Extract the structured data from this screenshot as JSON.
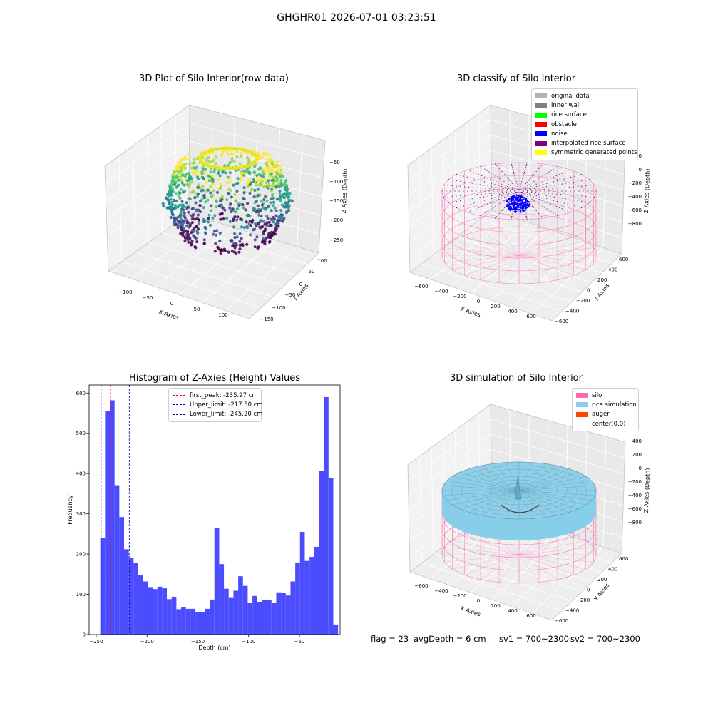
{
  "suptitle": "GHGHR01 2026-07-01 03:23:51",
  "chart_data": [
    {
      "type": "scatter",
      "title": "3D Plot of Silo Interior(row data)",
      "xlabel": "X Axies",
      "ylabel": "Y Axies",
      "zlabel": "Z Axies (Depth)",
      "xticks": [
        "−100",
        "−50",
        "0",
        "50",
        "100"
      ],
      "yticks": [
        "100",
        "50",
        "0",
        "−50",
        "−100",
        "−150"
      ],
      "zticks": [
        "−50",
        "−100",
        "−150",
        "−200",
        "−250"
      ],
      "zlim": [
        -260,
        -20
      ],
      "colormap": "viridis"
    },
    {
      "type": "scatter",
      "title": "3D classify of Silo Interior",
      "xlabel": "X Axies",
      "ylabel": "Y Axies",
      "zlabel": "Z Axies (Depth)",
      "xticks": [
        "−600",
        "−400",
        "−200",
        "0",
        "200",
        "400",
        "600"
      ],
      "yticks": [
        "600",
        "400",
        "200",
        "0",
        "−200",
        "−400",
        "−600"
      ],
      "zticks": [
        "200",
        "0",
        "−200",
        "−400",
        "−600",
        "−800"
      ],
      "legend": [
        {
          "label": "original data",
          "color": "#b3b3b3"
        },
        {
          "label": "inner wall",
          "color": "#808080"
        },
        {
          "label": "rice surface",
          "color": "#00ff00"
        },
        {
          "label": "obstacle",
          "color": "#ff0000"
        },
        {
          "label": "noise",
          "color": "#0000ff"
        },
        {
          "label": "interpolated rice surface",
          "color": "#800080"
        },
        {
          "label": "symmetric generated points",
          "color": "#ffff00"
        }
      ]
    },
    {
      "type": "bar",
      "title": "Histogram of Z-Axies (Height) Values",
      "xlabel": "Depth (cm)",
      "ylabel": "Frequency",
      "xlim": [
        -257,
        -10
      ],
      "ylim": [
        0,
        620
      ],
      "xticks": [
        -250,
        -200,
        -150,
        -100,
        -50
      ],
      "yticks": [
        0,
        100,
        200,
        300,
        400,
        500,
        600
      ],
      "bin_start": -246.0,
      "bin_width": 4.68,
      "values": [
        240,
        556,
        582,
        371,
        292,
        212,
        190,
        178,
        147,
        132,
        118,
        113,
        119,
        115,
        88,
        94,
        63,
        69,
        64,
        64,
        56,
        55,
        64,
        87,
        265,
        175,
        114,
        91,
        109,
        145,
        121,
        78,
        96,
        80,
        86,
        86,
        78,
        105,
        104,
        97,
        132,
        179,
        255,
        183,
        193,
        218,
        406,
        590,
        388,
        25
      ],
      "bar_color": "#4c4cff",
      "vlines": [
        {
          "label": "first_peak: -235.97 cm",
          "x": -235.97,
          "color": "#ff0000"
        },
        {
          "label": "Upper_limit: -217.50 cm",
          "x": -217.5,
          "color": "#0000aa"
        },
        {
          "label": "Lower_limit: -245.20 cm",
          "x": -245.2,
          "color": "#0000aa"
        }
      ]
    },
    {
      "type": "scatter",
      "title": "3D simulation of Silo Interior",
      "xlabel": "X Axies",
      "ylabel": "Y Axies",
      "zlabel": "Z Axies (Depth)",
      "xticks": [
        "−600",
        "−400",
        "−200",
        "0",
        "200",
        "400",
        "600"
      ],
      "yticks": [
        "600",
        "400",
        "200",
        "0",
        "−200",
        "−400",
        "−600"
      ],
      "zticks": [
        "400",
        "200",
        "0",
        "−200",
        "−400",
        "−600",
        "−800"
      ],
      "legend": [
        {
          "label": "silo",
          "color": "#ff69b4"
        },
        {
          "label": "rice simulation",
          "color": "#87ceeb"
        },
        {
          "label": "auger",
          "color": "#ff4500"
        },
        {
          "label": "center(0,0)",
          "color": "#ffffff"
        }
      ]
    }
  ],
  "footer": {
    "flag": "flag = 23",
    "avg_depth": "avgDepth = 6 cm",
    "sv1": "sv1 = 700~2300",
    "sv2": "sv2 = 700~2300"
  }
}
